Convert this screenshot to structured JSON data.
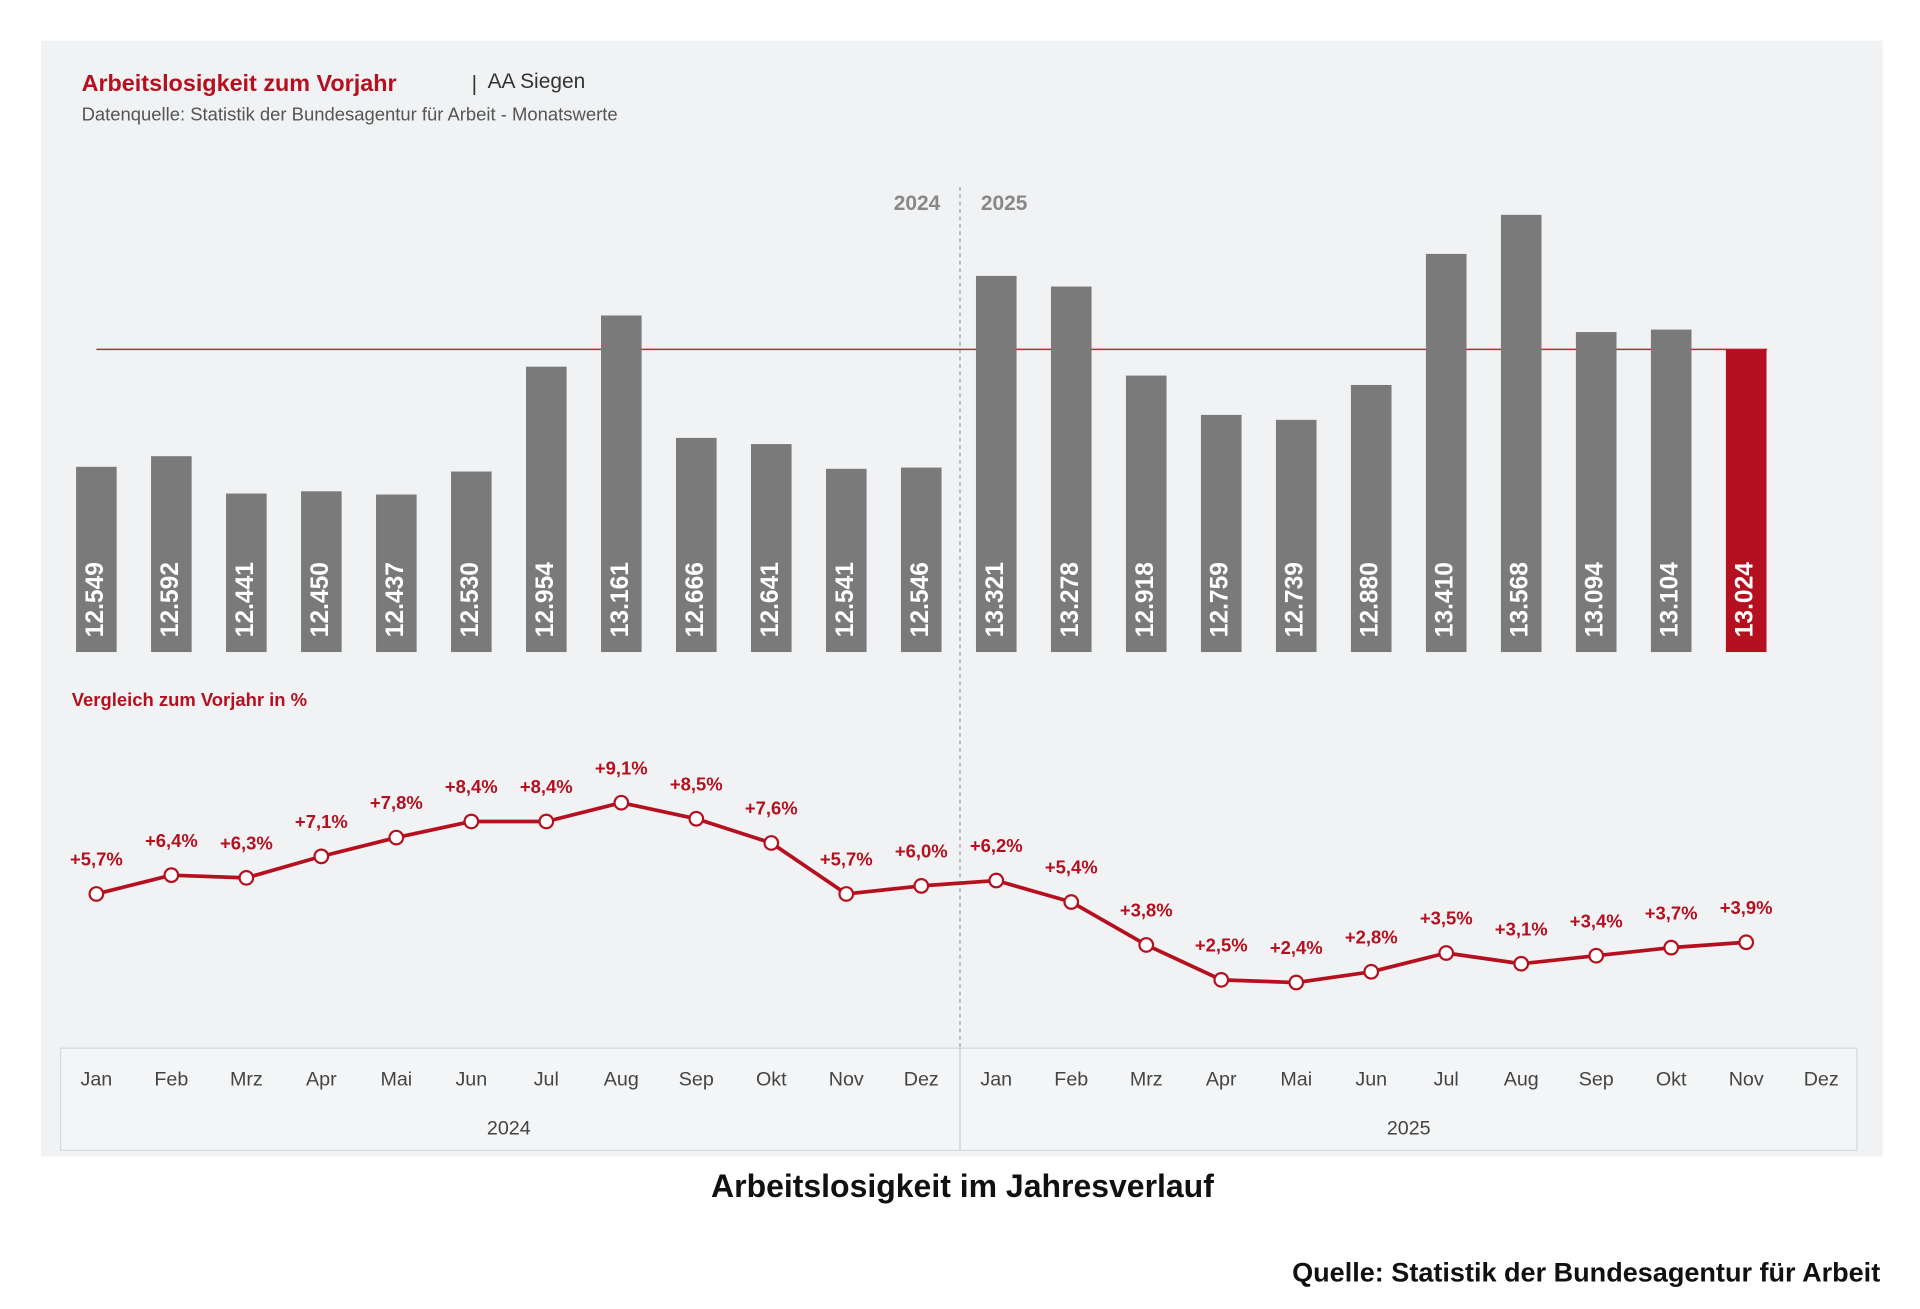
{
  "chart_data": [
    {
      "type": "bar",
      "title": "Arbeitslosigkeit zum Vorjahr",
      "region": "AA Siegen",
      "subtitle": "Datenquelle: Statistik der Bundesagentur für Arbeit - Monatswerte",
      "years": [
        "2024",
        "2025"
      ],
      "categories": [
        "Jan",
        "Feb",
        "Mrz",
        "Apr",
        "Mai",
        "Jun",
        "Jul",
        "Aug",
        "Sep",
        "Okt",
        "Nov",
        "Dez",
        "Jan",
        "Feb",
        "Mrz",
        "Apr",
        "Mai",
        "Jun",
        "Jul",
        "Aug",
        "Sep",
        "Okt",
        "Nov",
        "Dez"
      ],
      "values": [
        12549,
        12592,
        12441,
        12450,
        12437,
        12530,
        12954,
        13161,
        12666,
        12641,
        12541,
        12546,
        13321,
        13278,
        12918,
        12759,
        12739,
        12880,
        13410,
        13568,
        13094,
        13104,
        13024,
        null
      ],
      "value_labels": [
        "12.549",
        "12.592",
        "12.441",
        "12.450",
        "12.437",
        "12.530",
        "12.954",
        "13.161",
        "12.666",
        "12.641",
        "12.541",
        "12.546",
        "13.321",
        "13.278",
        "12.918",
        "12.759",
        "12.739",
        "12.880",
        "13.410",
        "13.568",
        "13.094",
        "13.104",
        "13.024",
        null
      ],
      "colors": [
        "#7a7a7a",
        "#7a7a7a",
        "#7a7a7a",
        "#7a7a7a",
        "#7a7a7a",
        "#7a7a7a",
        "#7a7a7a",
        "#7a7a7a",
        "#7a7a7a",
        "#7a7a7a",
        "#7a7a7a",
        "#7a7a7a",
        "#7a7a7a",
        "#7a7a7a",
        "#7a7a7a",
        "#7a7a7a",
        "#7a7a7a",
        "#7a7a7a",
        "#7a7a7a",
        "#7a7a7a",
        "#7a7a7a",
        "#7a7a7a",
        "#b5101f",
        null
      ],
      "reference_color": "#c0283a",
      "ylim": [
        11800,
        13800
      ]
    },
    {
      "type": "line",
      "title": "Vergleich zum Vorjahr in %",
      "color": "#b5101f",
      "values": [
        5.7,
        6.4,
        6.3,
        7.1,
        7.8,
        8.4,
        8.4,
        9.1,
        8.5,
        7.6,
        5.7,
        6.0,
        6.2,
        5.4,
        3.8,
        2.5,
        2.4,
        2.8,
        3.5,
        3.1,
        3.4,
        3.7,
        3.9,
        null
      ],
      "value_labels": [
        "+5,7%",
        "+6,4%",
        "+6,3%",
        "+7,1%",
        "+7,8%",
        "+8,4%",
        "+8,4%",
        "+9,1%",
        "+8,5%",
        "+7,6%",
        "+5,7%",
        "+6,0%",
        "+6,2%",
        "+5,4%",
        "+3,8%",
        "+2,5%",
        "+2,4%",
        "+2,8%",
        "+3,5%",
        "+3,1%",
        "+3,4%",
        "+3,7%",
        "+3,9%",
        null
      ],
      "ylim": [
        0,
        11
      ]
    }
  ],
  "caption": "Arbeitslosigkeit im Jahresverlauf",
  "source": "Quelle: Statistik der Bundesagentur für Arbeit"
}
